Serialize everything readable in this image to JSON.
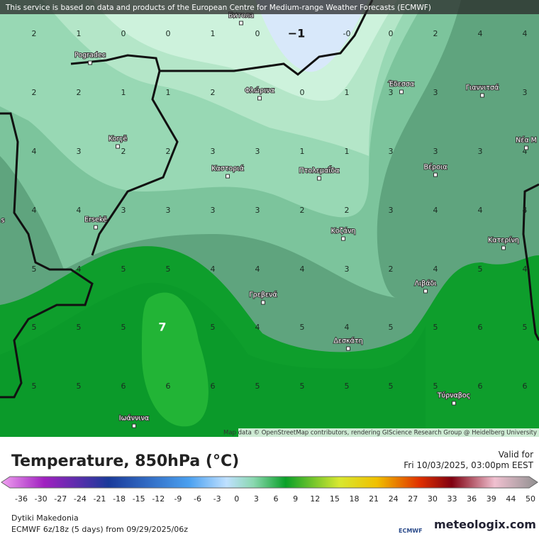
{
  "map": {
    "banner": "This service is based on data and products of the European Centre for Medium-range Weather Forecasts (ECMWF)",
    "attribution": "Map data © OpenStreetMap contributors, rendering GIScience Research Group @ Heidelberg University",
    "grid": [
      [
        "2",
        "1",
        "0",
        "0",
        "1",
        "0",
        "−1",
        "-0",
        "0",
        "2",
        "4",
        "4"
      ],
      [
        "2",
        "2",
        "1",
        "1",
        "2",
        null,
        "0",
        "1",
        "3",
        "3",
        null,
        "3"
      ],
      [
        "4",
        "3",
        "2",
        "2",
        "3",
        "3",
        "1",
        "1",
        "3",
        "3",
        "3",
        "4"
      ],
      [
        "4",
        "4",
        "3",
        "3",
        "3",
        "3",
        "2",
        "2",
        "3",
        "4",
        "4",
        "4"
      ],
      [
        "5",
        "4",
        "5",
        "5",
        "4",
        "4",
        "4",
        "3",
        "2",
        "4",
        "5",
        "4"
      ],
      [
        "5",
        "5",
        "5",
        "7",
        "5",
        "4",
        "5",
        "4",
        "5",
        "5",
        "6",
        "5"
      ],
      [
        "5",
        "5",
        "6",
        "6",
        "6",
        "5",
        "5",
        "5",
        "5",
        "5",
        "6",
        "6"
      ]
    ],
    "cities": [
      "Битола",
      "Pogradec",
      "Φλώρινα",
      "Έδεσσα",
      "Γιαννιτσά",
      "Korçë",
      "Καστοριά",
      "Πτολεμαΐδα",
      "Βέροια",
      "Νέα Μ",
      "Ersekë",
      "Κοζάνη",
      "Κατερίνη",
      "Λιβάδι",
      "Γρεβενά",
      "Δεσκάτη",
      "Τύρναβος",
      "Ιωάννινα",
      "s"
    ]
  },
  "footer": {
    "title": "Temperature, 850hPa (°C)",
    "valid_label": "Valid for",
    "valid_time": "Fri 10/03/2025, 03:00pm EEST",
    "legend": [
      -36,
      -30,
      -27,
      -24,
      -21,
      -18,
      -15,
      -12,
      -9,
      -6,
      -3,
      0,
      3,
      6,
      9,
      12,
      15,
      18,
      21,
      24,
      27,
      30,
      33,
      36,
      39,
      44,
      50
    ],
    "region": "Dytiki Makedonia",
    "model": "ECMWF 6z/18z (5 days) from 09/29/2025/06z",
    "ecmwf_logo": "ECMWF",
    "brand": "meteologix.com"
  }
}
